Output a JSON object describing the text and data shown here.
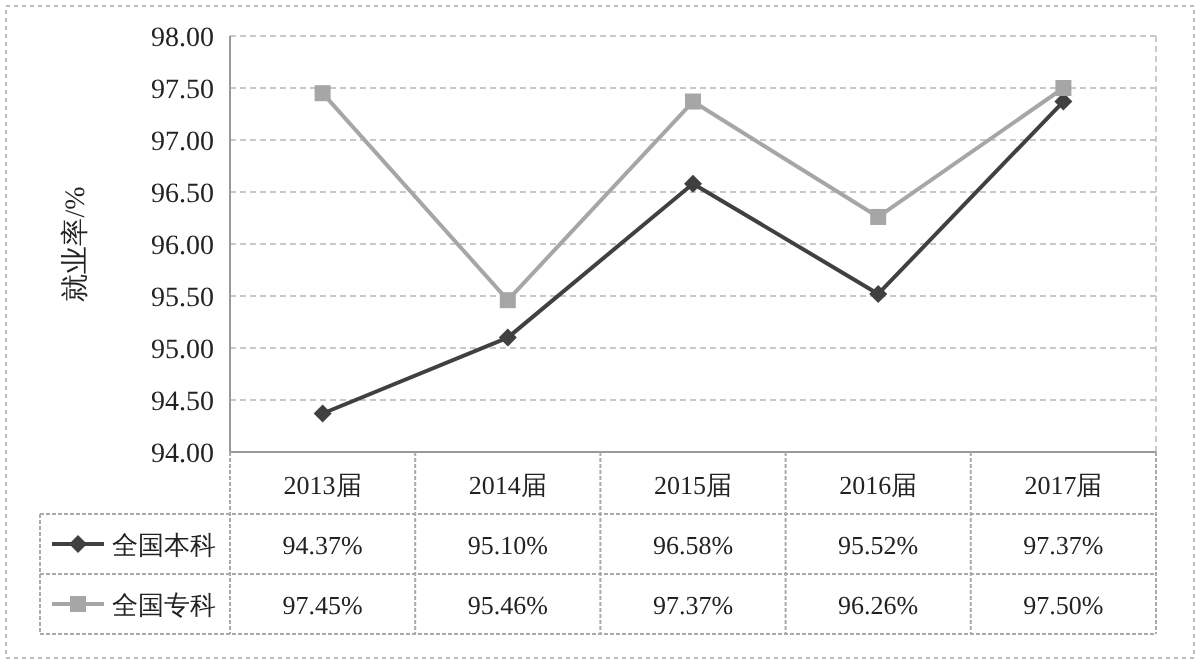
{
  "chart_data": {
    "type": "line",
    "ylabel": "就业率/%",
    "categories": [
      "2013届",
      "2014届",
      "2015届",
      "2016届",
      "2017届"
    ],
    "series": [
      {
        "name": "全国本科",
        "color": "#404040",
        "marker": "diamond",
        "values": [
          94.37,
          95.1,
          96.58,
          95.52,
          97.37
        ],
        "value_labels": [
          "94.37%",
          "95.10%",
          "96.58%",
          "95.52%",
          "97.37%"
        ]
      },
      {
        "name": "全国专科",
        "color": "#a6a6a6",
        "marker": "square",
        "values": [
          97.45,
          95.46,
          97.37,
          96.26,
          97.5
        ],
        "value_labels": [
          "97.45%",
          "95.46%",
          "97.37%",
          "96.26%",
          "97.50%"
        ]
      }
    ],
    "ylim": [
      94,
      98
    ],
    "yticks": [
      {
        "value": 94,
        "label": "94.00"
      },
      {
        "value": 94.5,
        "label": "94.50"
      },
      {
        "value": 95,
        "label": "95.00"
      },
      {
        "value": 95.5,
        "label": "95.50"
      },
      {
        "value": 96,
        "label": "96.00"
      },
      {
        "value": 96.5,
        "label": "96.50"
      },
      {
        "value": 97,
        "label": "97.00"
      },
      {
        "value": 97.5,
        "label": "97.50"
      },
      {
        "value": 98,
        "label": "98.00"
      }
    ],
    "grid": "y",
    "legend": "bottom"
  }
}
